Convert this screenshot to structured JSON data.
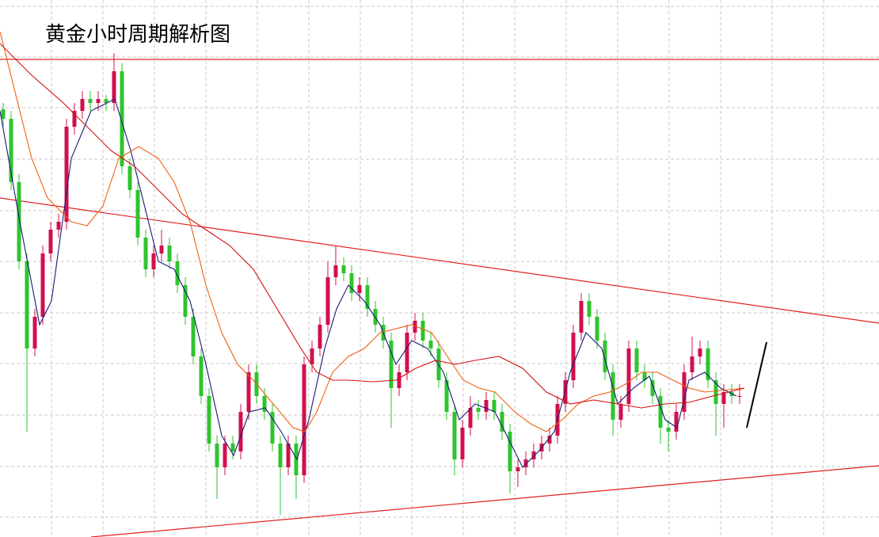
{
  "chart_data": {
    "type": "candlestick",
    "title": "黄金小时周期解析图",
    "xlim": [
      0,
      1110
    ],
    "ylim": [
      0,
      678
    ],
    "grid": true,
    "xticks": [
      65,
      130,
      195,
      260,
      325,
      390,
      455,
      520,
      585,
      650,
      715,
      780,
      845,
      910,
      975,
      1040
    ],
    "yticks": [
      25,
      89,
      154,
      219,
      283,
      348,
      412,
      477,
      542,
      606,
      670
    ],
    "up_color": "#d0104c",
    "down_color": "#2ec42e",
    "x": [
      4,
      14,
      24,
      34,
      44,
      54,
      64,
      74,
      84,
      94,
      104,
      114,
      124,
      134,
      144,
      154,
      164,
      174,
      184,
      194,
      204,
      214,
      224,
      234,
      244,
      254,
      264,
      274,
      284,
      294,
      304,
      314,
      324,
      334,
      344,
      354,
      364,
      374,
      384,
      394,
      404,
      414,
      424,
      434,
      444,
      454,
      464,
      474,
      484,
      494,
      504,
      514,
      524,
      534,
      544,
      554,
      564,
      574,
      584,
      594,
      604,
      614,
      624,
      634,
      644,
      654,
      664,
      674,
      684,
      694,
      704,
      714,
      724,
      734,
      744,
      754,
      764,
      774,
      784,
      794,
      804,
      814,
      824,
      834,
      844,
      854,
      864,
      874,
      884,
      894,
      904,
      914,
      924,
      934
    ],
    "ohlc": [
      [
        540,
        548,
        518,
        528
      ],
      [
        528,
        538,
        438,
        448
      ],
      [
        448,
        458,
        338,
        348
      ],
      [
        348,
        358,
        133,
        238
      ],
      [
        238,
        288,
        228,
        278
      ],
      [
        278,
        368,
        268,
        358
      ],
      [
        358,
        398,
        348,
        388
      ],
      [
        388,
        408,
        378,
        398
      ],
      [
        398,
        528,
        388,
        518
      ],
      [
        518,
        548,
        508,
        538
      ],
      [
        538,
        563,
        528,
        553
      ],
      [
        553,
        563,
        538,
        548
      ],
      [
        548,
        563,
        538,
        553
      ],
      [
        553,
        558,
        538,
        548
      ],
      [
        548,
        611,
        538,
        588
      ],
      [
        588,
        598,
        458,
        468
      ],
      [
        468,
        478,
        428,
        438
      ],
      [
        438,
        448,
        368,
        378
      ],
      [
        378,
        388,
        328,
        338
      ],
      [
        338,
        368,
        328,
        358
      ],
      [
        358,
        388,
        348,
        368
      ],
      [
        368,
        378,
        338,
        348
      ],
      [
        348,
        358,
        308,
        318
      ],
      [
        318,
        328,
        268,
        278
      ],
      [
        278,
        288,
        218,
        228
      ],
      [
        228,
        238,
        168,
        178
      ],
      [
        178,
        188,
        108,
        118
      ],
      [
        118,
        128,
        48,
        88
      ],
      [
        88,
        128,
        78,
        118
      ],
      [
        118,
        128,
        98,
        108
      ],
      [
        108,
        168,
        98,
        158
      ],
      [
        158,
        218,
        148,
        208
      ],
      [
        208,
        218,
        168,
        178
      ],
      [
        178,
        188,
        148,
        158
      ],
      [
        158,
        168,
        108,
        118
      ],
      [
        118,
        128,
        28,
        88
      ],
      [
        88,
        128,
        78,
        118
      ],
      [
        118,
        128,
        48,
        78
      ],
      [
        78,
        228,
        68,
        218
      ],
      [
        218,
        248,
        208,
        238
      ],
      [
        238,
        278,
        228,
        268
      ],
      [
        268,
        348,
        258,
        328
      ],
      [
        328,
        368,
        318,
        343
      ],
      [
        343,
        353,
        323,
        333
      ],
      [
        333,
        343,
        298,
        308
      ],
      [
        308,
        328,
        298,
        318
      ],
      [
        318,
        328,
        278,
        288
      ],
      [
        288,
        298,
        258,
        268
      ],
      [
        268,
        278,
        238,
        248
      ],
      [
        248,
        258,
        138,
        188
      ],
      [
        188,
        218,
        178,
        208
      ],
      [
        208,
        268,
        198,
        258
      ],
      [
        258,
        283,
        248,
        273
      ],
      [
        273,
        283,
        238,
        248
      ],
      [
        248,
        258,
        228,
        238
      ],
      [
        238,
        248,
        188,
        198
      ],
      [
        198,
        208,
        148,
        158
      ],
      [
        158,
        168,
        78,
        98
      ],
      [
        98,
        148,
        88,
        138
      ],
      [
        138,
        178,
        128,
        163
      ],
      [
        163,
        173,
        148,
        158
      ],
      [
        158,
        183,
        148,
        173
      ],
      [
        173,
        183,
        148,
        158
      ],
      [
        158,
        168,
        123,
        133
      ],
      [
        133,
        143,
        55,
        83
      ],
      [
        83,
        98,
        63,
        88
      ],
      [
        88,
        108,
        78,
        98
      ],
      [
        98,
        118,
        88,
        108
      ],
      [
        108,
        128,
        98,
        118
      ],
      [
        118,
        138,
        108,
        128
      ],
      [
        128,
        178,
        118,
        168
      ],
      [
        168,
        208,
        158,
        198
      ],
      [
        198,
        268,
        188,
        258
      ],
      [
        258,
        308,
        248,
        298
      ],
      [
        298,
        308,
        268,
        278
      ],
      [
        278,
        288,
        238,
        248
      ],
      [
        248,
        258,
        198,
        208
      ],
      [
        208,
        218,
        128,
        148
      ],
      [
        148,
        178,
        138,
        168
      ],
      [
        168,
        248,
        158,
        238
      ],
      [
        238,
        248,
        198,
        208
      ],
      [
        208,
        218,
        188,
        198
      ],
      [
        198,
        208,
        168,
        178
      ],
      [
        178,
        188,
        118,
        138
      ],
      [
        138,
        148,
        108,
        133
      ],
      [
        133,
        168,
        123,
        158
      ],
      [
        158,
        218,
        148,
        208
      ],
      [
        208,
        253,
        198,
        228
      ],
      [
        228,
        248,
        218,
        238
      ],
      [
        238,
        248,
        188,
        198
      ],
      [
        198,
        208,
        128,
        168
      ],
      [
        168,
        193,
        138,
        183
      ],
      [
        183,
        193,
        168,
        178
      ],
      [
        178,
        193,
        168,
        178
      ]
    ],
    "series": [
      {
        "color": "#1a1a7a",
        "x": [
          0,
          25,
          50,
          65,
          90,
          115,
          145,
          165,
          185,
          200,
          220,
          240,
          260,
          280,
          295,
          315,
          335,
          355,
          375,
          390,
          410,
          425,
          440,
          460,
          480,
          500,
          520,
          540,
          560,
          580,
          600,
          625,
          645,
          660,
          680,
          700,
          720,
          740,
          760,
          780,
          800,
          820,
          840,
          855,
          870,
          890,
          910,
          930
        ],
        "values": [
          538,
          398,
          268,
          298,
          478,
          538,
          553,
          488,
          408,
          348,
          338,
          298,
          218,
          128,
          103,
          158,
          163,
          133,
          98,
          148,
          238,
          288,
          318,
          298,
          268,
          218,
          248,
          238,
          208,
          148,
          168,
          158,
          118,
          88,
          108,
          133,
          208,
          258,
          238,
          168,
          188,
          203,
          148,
          138,
          198,
          208,
          188,
          178
        ]
      },
      {
        "color": "#f06010",
        "x": [
          0,
          20,
          40,
          60,
          90,
          110,
          130,
          150,
          175,
          200,
          220,
          240,
          260,
          280,
          300,
          320,
          345,
          370,
          385,
          400,
          420,
          440,
          460,
          480,
          500,
          520,
          545,
          565,
          585,
          605,
          625,
          650,
          670,
          690,
          710,
          730,
          750,
          770,
          790,
          810,
          830,
          850,
          870,
          890,
          910,
          940
        ],
        "values": [
          638,
          558,
          478,
          428,
          398,
          393,
          418,
          478,
          493,
          478,
          448,
          398,
          318,
          258,
          218,
          198,
          168,
          138,
          133,
          158,
          208,
          228,
          238,
          258,
          263,
          268,
          258,
          228,
          198,
          188,
          183,
          158,
          143,
          133,
          148,
          168,
          178,
          183,
          193,
          208,
          208,
          198,
          188,
          183,
          185,
          188
        ]
      },
      {
        "color": "#d01010",
        "x": [
          0,
          40,
          80,
          110,
          140,
          170,
          200,
          230,
          260,
          290,
          320,
          350,
          380,
          400,
          420,
          440,
          470,
          500,
          525,
          550,
          575,
          600,
          630,
          660,
          690,
          720,
          750,
          780,
          810,
          840,
          870,
          900,
          940
        ],
        "values": [
          623,
          583,
          548,
          518,
          488,
          468,
          438,
          408,
          388,
          368,
          338,
          288,
          238,
          208,
          198,
          198,
          196,
          198,
          213,
          223,
          218,
          223,
          228,
          213,
          183,
          168,
          173,
          168,
          163,
          168,
          170,
          178,
          188
        ]
      }
    ],
    "trend_lines": [
      {
        "color": "#e02020",
        "x": [
          0,
          1110
        ],
        "values": [
          603,
          603
        ]
      },
      {
        "color": "#e02020",
        "x": [
          0,
          1110
        ],
        "values": [
          428,
          270
        ]
      },
      {
        "color": "#e02020",
        "x": [
          115,
          1110
        ],
        "values": [
          0,
          90
        ]
      },
      {
        "color": "#000000",
        "x": [
          943,
          968
        ],
        "values": [
          138,
          246
        ]
      }
    ]
  }
}
